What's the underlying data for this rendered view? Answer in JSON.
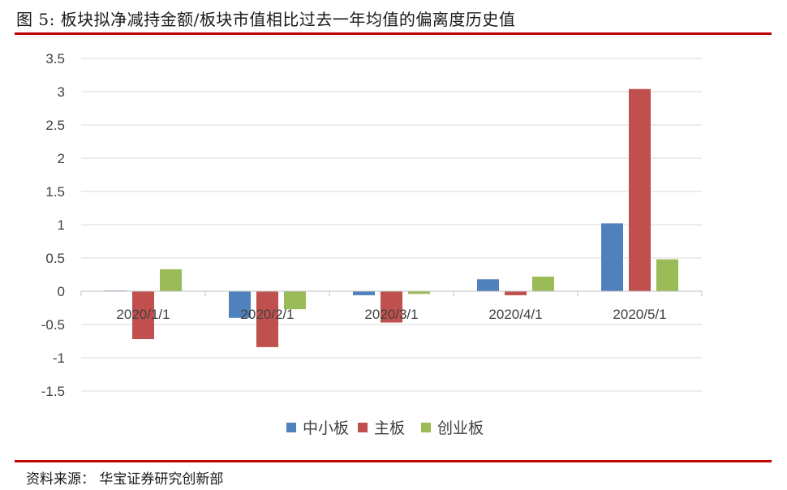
{
  "header": {
    "title": "图 5:  板块拟净减持金额/板块市值相比过去一年均值的偏离度历史值"
  },
  "footer": {
    "source": "资料来源：  华宝证券研究创新部"
  },
  "chart_data": {
    "type": "bar",
    "title": "板块拟净减持金额/板块市值相比过去一年均值的偏离度历史值",
    "categories": [
      "2020/1/1",
      "2020/2/1",
      "2020/3/1",
      "2020/4/1",
      "2020/5/1"
    ],
    "series": [
      {
        "name": "中小板",
        "color": "#4f81bd",
        "values": [
          0.01,
          -0.4,
          -0.06,
          0.18,
          1.02
        ]
      },
      {
        "name": "主板",
        "color": "#c0504d",
        "values": [
          -0.72,
          -0.84,
          -0.47,
          -0.06,
          3.04
        ]
      },
      {
        "name": "创业板",
        "color": "#9bbb59",
        "values": [
          0.33,
          -0.27,
          -0.04,
          0.22,
          0.48
        ]
      }
    ],
    "ylim": [
      -1.5,
      3.5
    ],
    "yticks": [
      "3.5",
      "3",
      "2.5",
      "2",
      "1.5",
      "1",
      "0.5",
      "0",
      "-0.5",
      "-1",
      "-1.5"
    ],
    "ytick_values": [
      3.5,
      3,
      2.5,
      2,
      1.5,
      1,
      0.5,
      0,
      -0.5,
      -1,
      -1.5
    ],
    "xlabel": "",
    "ylabel": "",
    "grid": true,
    "legend": "bottom"
  }
}
